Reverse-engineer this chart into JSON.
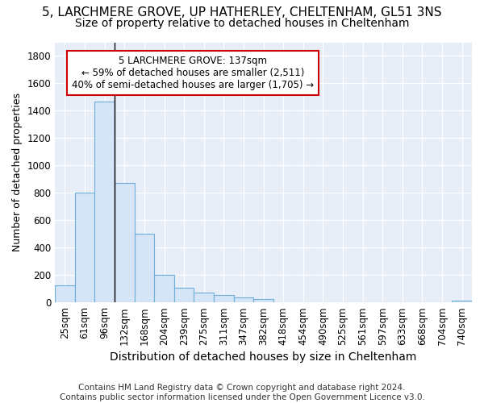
{
  "title1": "5, LARCHMERE GROVE, UP HATHERLEY, CHELTENHAM, GL51 3NS",
  "title2": "Size of property relative to detached houses in Cheltenham",
  "xlabel": "Distribution of detached houses by size in Cheltenham",
  "ylabel": "Number of detached properties",
  "categories": [
    "25sqm",
    "61sqm",
    "96sqm",
    "132sqm",
    "168sqm",
    "204sqm",
    "239sqm",
    "275sqm",
    "311sqm",
    "347sqm",
    "382sqm",
    "418sqm",
    "454sqm",
    "490sqm",
    "525sqm",
    "561sqm",
    "597sqm",
    "633sqm",
    "668sqm",
    "704sqm",
    "740sqm"
  ],
  "bar_heights": [
    125,
    800,
    1470,
    875,
    500,
    200,
    110,
    70,
    55,
    35,
    25,
    0,
    0,
    0,
    0,
    0,
    0,
    0,
    0,
    0,
    15
  ],
  "bar_color": "#d6e4f7",
  "bar_edge_color": "#6baed6",
  "vline_x_index": 3,
  "vline_color": "#000000",
  "annotation_text": "5 LARCHMERE GROVE: 137sqm\n← 59% of detached houses are smaller (2,511)\n40% of semi-detached houses are larger (1,705) →",
  "annotation_box_color": "#ffffff",
  "annotation_box_edge_color": "#cc0000",
  "ylim": [
    0,
    1900
  ],
  "yticks": [
    0,
    200,
    400,
    600,
    800,
    1000,
    1200,
    1400,
    1600,
    1800
  ],
  "bg_color": "#ffffff",
  "plot_bg_color": "#e8eef8",
  "footer_text": "Contains HM Land Registry data © Crown copyright and database right 2024.\nContains public sector information licensed under the Open Government Licence v3.0.",
  "title1_fontsize": 11,
  "title2_fontsize": 10,
  "xlabel_fontsize": 10,
  "ylabel_fontsize": 9,
  "tick_fontsize": 8.5,
  "footer_fontsize": 7.5
}
